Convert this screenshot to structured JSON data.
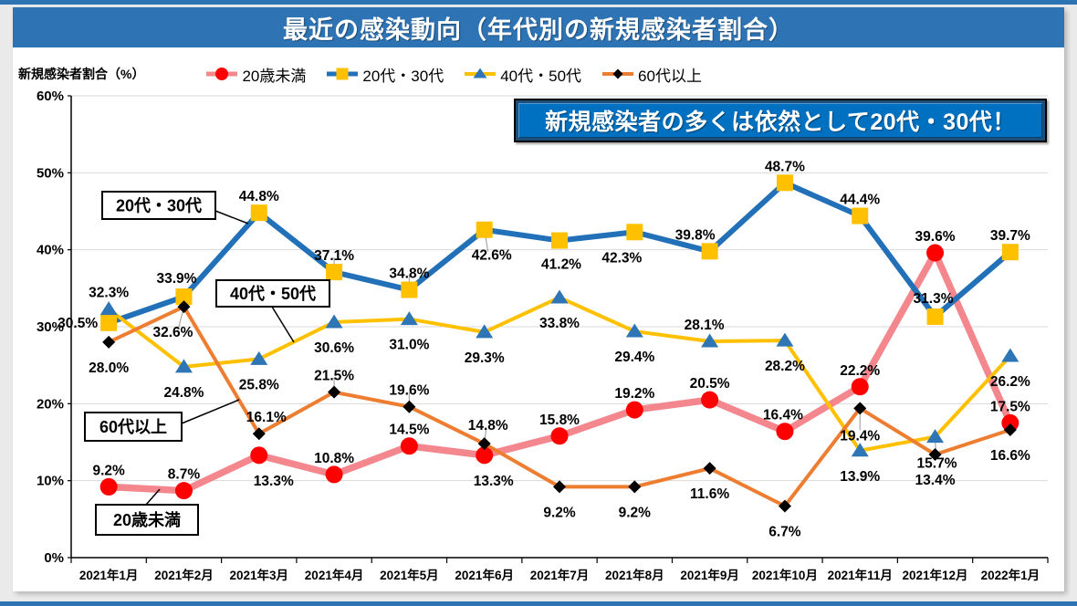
{
  "page_title": "最近の感染動向（年代別の新規感染者割合）",
  "y_axis_title": "新規感染者割合（%）",
  "annotation": "新規感染者の多くは依然として20代・30代！",
  "colors": {
    "banner_blue": "#2E74B5",
    "annotation_blue": "#0070C0",
    "grid_gray": "#D9D9D9",
    "axis_black": "#000000"
  },
  "chart_data": {
    "type": "line",
    "title": "最近の感染動向（年代別の新規感染者割合）",
    "ylabel": "新規感染者割合（%）",
    "ylim": [
      0,
      60
    ],
    "y_ticks": [
      "0%",
      "10%",
      "20%",
      "30%",
      "40%",
      "50%",
      "60%"
    ],
    "grid": true,
    "legend_position": "top",
    "categories": [
      "2021年1月",
      "2021年2月",
      "2021年3月",
      "2021年4月",
      "2021年5月",
      "2021年6月",
      "2021年7月",
      "2021年8月",
      "2021年9月",
      "2021年10月",
      "2021年11月",
      "2021年12月",
      "2022年1月"
    ],
    "series": [
      {
        "name": "20歳未満",
        "slug": "under-20",
        "marker": "circle",
        "marker_color": "#FF0000",
        "line_color": "#F4878E",
        "line_width": 7.5,
        "values": [
          9.2,
          8.7,
          13.3,
          10.8,
          14.5,
          13.3,
          15.8,
          19.2,
          20.5,
          16.4,
          22.2,
          39.6,
          17.5
        ],
        "labels": [
          "9.2%",
          "8.7%",
          "13.3%",
          "10.8%",
          "14.5%",
          "13.3%",
          "15.8%",
          "19.2%",
          "20.5%",
          "16.4%",
          "22.2%",
          "39.6%",
          "17.5%"
        ]
      },
      {
        "name": "20代・30代",
        "slug": "20s-30s",
        "marker": "square",
        "marker_color": "#FFC000",
        "line_color": "#2271B8",
        "line_width": 6,
        "values": [
          30.5,
          33.9,
          44.8,
          37.1,
          34.8,
          42.6,
          41.2,
          42.3,
          39.8,
          48.7,
          44.4,
          31.3,
          39.7
        ],
        "labels": [
          "30.5%",
          "33.9%",
          "44.8%",
          "37.1%",
          "34.8%",
          "42.6%",
          "41.2%",
          "42.3%",
          "39.8%",
          "48.7%",
          "44.4%",
          "31.3%",
          "39.7%"
        ]
      },
      {
        "name": "40代・50代",
        "slug": "40s-50s",
        "marker": "triangle",
        "marker_color": "#2E75B6",
        "line_color": "#FFC000",
        "line_width": 4,
        "values": [
          32.3,
          24.8,
          25.8,
          30.6,
          31.0,
          29.3,
          33.8,
          29.4,
          28.1,
          28.2,
          13.9,
          15.7,
          26.2
        ],
        "labels": [
          "32.3%",
          "24.8%",
          "25.8%",
          "30.6%",
          "31.0%",
          "29.3%",
          "33.8%",
          "29.4%",
          "28.1%",
          "28.2%",
          "13.9%",
          "15.7%",
          "26.2%"
        ]
      },
      {
        "name": "60代以上",
        "slug": "60-plus",
        "marker": "diamond",
        "marker_color": "#000000",
        "line_color": "#ED7D31",
        "line_width": 4,
        "values": [
          28.0,
          32.6,
          16.1,
          21.5,
          19.6,
          14.8,
          9.2,
          9.2,
          11.6,
          6.7,
          19.4,
          13.4,
          16.6
        ],
        "labels": [
          "28.0%",
          "32.6%",
          "16.1%",
          "21.5%",
          "19.6%",
          "14.8%",
          "9.2%",
          "9.2%",
          "11.6%",
          "6.7%",
          "19.4%",
          "13.4%",
          "16.6%"
        ]
      }
    ],
    "callouts": [
      "20代・30代",
      "40代・50代",
      "60代以上",
      "20歳未満"
    ]
  }
}
